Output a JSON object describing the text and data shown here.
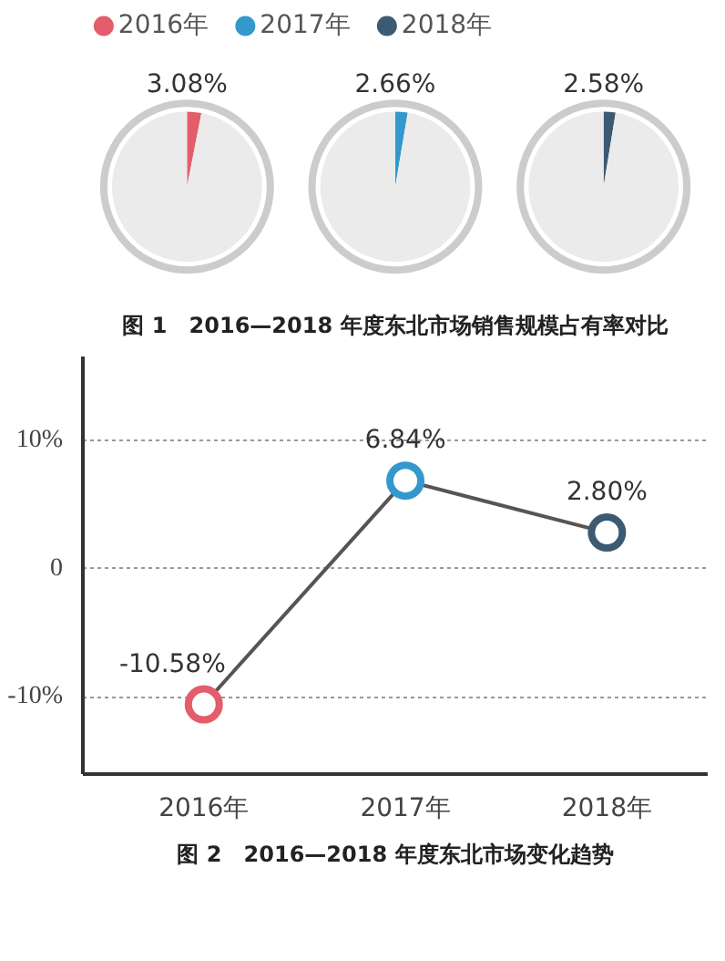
{
  "chart_data": [
    {
      "type": "pie",
      "title": "图 1　2016—2018 年度东北市场销售规模占有率对比",
      "legend": "top",
      "categories": [
        "2016年",
        null
      ],
      "values": [
        3.08,
        96.92
      ],
      "colors": [
        "#e35d6a",
        "#ebebeb"
      ],
      "value_labels": [
        "3.08%",
        null
      ]
    },
    {
      "type": "pie",
      "categories": [
        "2017年",
        null
      ],
      "values": [
        2.66,
        97.34
      ],
      "colors": [
        "#3399cc",
        "#ebebeb"
      ],
      "value_labels": [
        "2.66%",
        null
      ]
    },
    {
      "type": "pie",
      "categories": [
        "2018年",
        null
      ],
      "values": [
        2.58,
        97.42
      ],
      "colors": [
        "#3d5a73",
        "#ebebeb"
      ],
      "value_labels": [
        "2.58%",
        null
      ]
    },
    {
      "type": "line",
      "title": "图 2　2016—2018 年度东北市场变化趋势",
      "categories": [
        "2016年",
        "2017年",
        "2018年"
      ],
      "ylim": [
        -16,
        16.5
      ],
      "yticks": [
        {
          "value": 10,
          "label": "10%"
        },
        0,
        {
          "value": -10,
          "label": "-10%"
        }
      ],
      "grid": "y",
      "marker": "circle",
      "data_labels": true,
      "series": [
        {
          "color": "#555555",
          "colors": [
            "#e35d6a",
            "#3399cc",
            "#3d5a73"
          ],
          "values": [
            -10.58,
            6.84,
            2.8
          ],
          "value_labels": [
            "-10.58%",
            "6.84%",
            "2.80%"
          ]
        }
      ]
    }
  ]
}
